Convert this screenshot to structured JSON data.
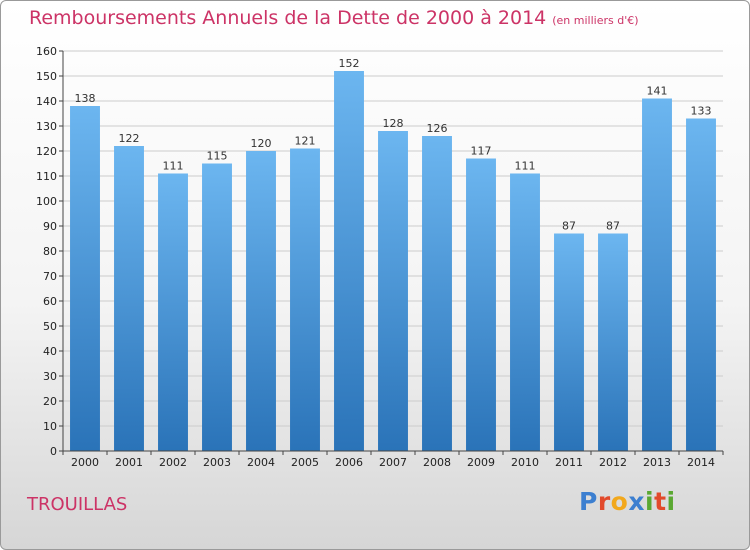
{
  "chart_data": {
    "type": "bar",
    "title": "Remboursements Annuels de la Dette de 2000 à 2014",
    "unit_label": "(en milliers d'€)",
    "categories": [
      "2000",
      "2001",
      "2002",
      "2003",
      "2004",
      "2005",
      "2006",
      "2007",
      "2008",
      "2009",
      "2010",
      "2011",
      "2012",
      "2013",
      "2014"
    ],
    "values": [
      138,
      122,
      111,
      115,
      120,
      121,
      152,
      128,
      126,
      117,
      111,
      87,
      87,
      141,
      133
    ],
    "ylim": [
      0,
      160
    ],
    "yticks": [
      0,
      10,
      20,
      30,
      40,
      50,
      60,
      70,
      80,
      90,
      100,
      110,
      120,
      130,
      140,
      150,
      160
    ],
    "grid": true,
    "bar_color": "#3d8fd6",
    "bar_color_light": "#6cb6f0",
    "bar_color_dark": "#2a73b8"
  },
  "commune": "TROUILLAS",
  "logo": {
    "letters": [
      "P",
      "r",
      "o",
      "x",
      "i",
      "t",
      "i"
    ],
    "colors": [
      "#3c7fd0",
      "#e24a2b",
      "#f2a81c",
      "#3c7fd0",
      "#5aa832",
      "#e24a2b",
      "#5aa832"
    ]
  },
  "colors": {
    "title": "#cc3366",
    "axis": "#444444",
    "grid": "#cccccc"
  }
}
